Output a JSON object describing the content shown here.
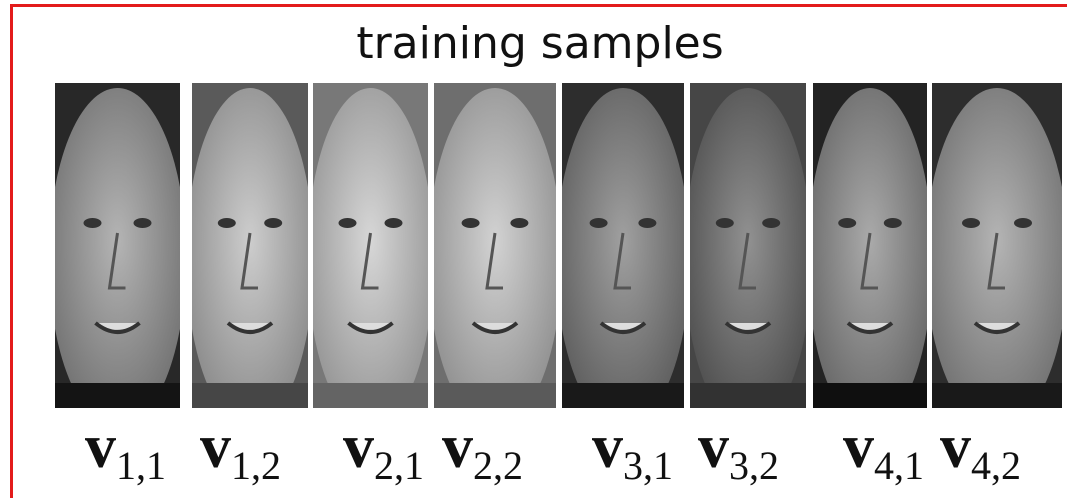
{
  "title": "training samples",
  "samples": [
    {
      "symbol": "v",
      "subscript": "1,1"
    },
    {
      "symbol": "v",
      "subscript": "1,2"
    },
    {
      "symbol": "v",
      "subscript": "2,1"
    },
    {
      "symbol": "v",
      "subscript": "2,2"
    },
    {
      "symbol": "v",
      "subscript": "3,1"
    },
    {
      "symbol": "v",
      "subscript": "3,2"
    },
    {
      "symbol": "v",
      "subscript": "4,1"
    },
    {
      "symbol": "v",
      "subscript": "4,2"
    }
  ]
}
